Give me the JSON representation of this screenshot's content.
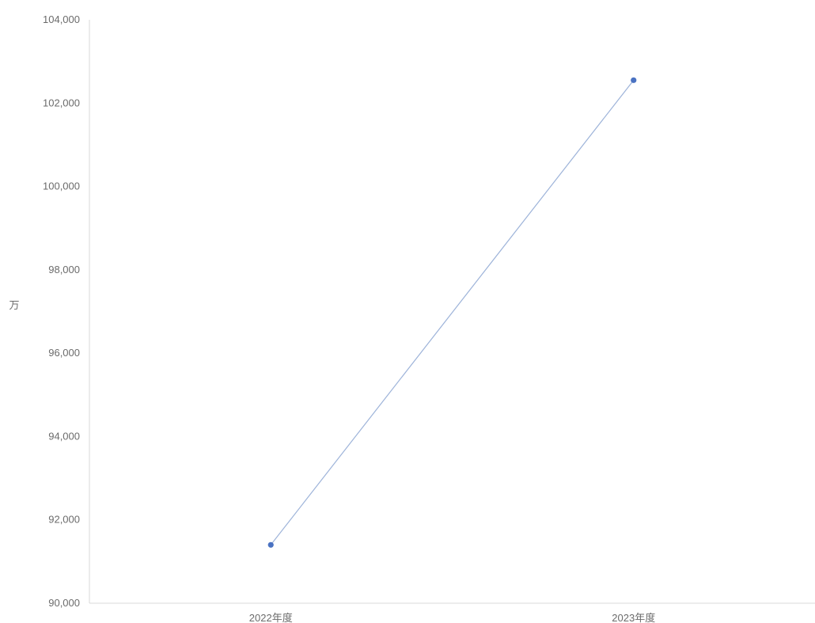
{
  "chart_data": {
    "type": "line",
    "title": "",
    "xlabel": "",
    "ylabel": "万",
    "categories": [
      "2022年度",
      "2023年度"
    ],
    "series": [
      {
        "values": [
          91400,
          102550
        ]
      }
    ],
    "ylim": [
      90000,
      104000
    ],
    "yticks": [
      90000,
      92000,
      94000,
      96000,
      98000,
      100000,
      102000,
      104000
    ],
    "ytick_labels": [
      "90,000",
      "92,000",
      "94,000",
      "96,000",
      "98,000",
      "100,000",
      "102,000",
      "104,000"
    ],
    "grid": false,
    "legend": "none",
    "colors": {
      "line": "#9db3d9",
      "marker": "#4a72c2",
      "axis": "#d9d9d9",
      "text": "#6b6b6b"
    }
  }
}
